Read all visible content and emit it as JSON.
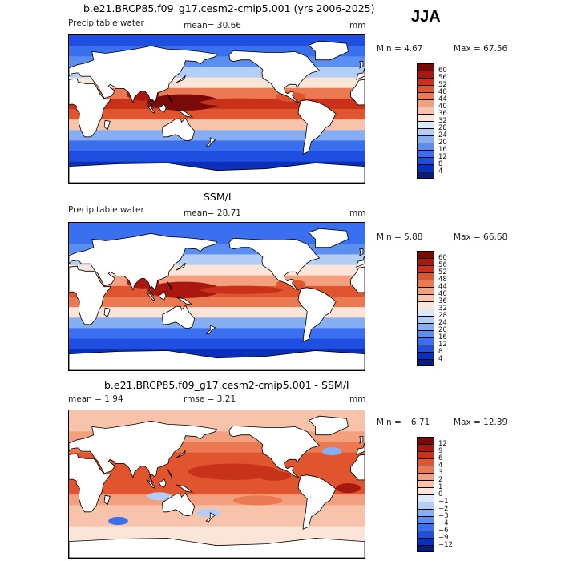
{
  "season": "JJA",
  "panels": [
    {
      "title": "b.e21.BRCP85.f09_g17.cesm2-cmip5.001 (yrs 2006-2025)",
      "variable": "Precipitable water",
      "stat_text": "mean=  30.66",
      "units": "mm",
      "min_text": "Min =    4.67",
      "max_text": "Max =   67.56",
      "colorbar_ticks": [
        "60",
        "56",
        "52",
        "48",
        "44",
        "40",
        "36",
        "32",
        "28",
        "24",
        "20",
        "16",
        "12",
        "8",
        "4"
      ]
    },
    {
      "title": "SSM/I",
      "variable": "Precipitable water",
      "stat_text": "mean=  28.71",
      "units": "mm",
      "min_text": "Min =    5.88",
      "max_text": "Max =   66.68",
      "colorbar_ticks": [
        "60",
        "56",
        "52",
        "48",
        "44",
        "40",
        "36",
        "32",
        "28",
        "24",
        "20",
        "16",
        "12",
        "8",
        "4"
      ]
    },
    {
      "title": "b.e21.BRCP85.f09_g17.cesm2-cmip5.001 - SSM/I",
      "stat_text": "mean =    1.94",
      "rmse_text": "rmse =    3.21",
      "units": "mm",
      "min_text": "Min =  −6.71",
      "max_text": "Max =   12.39",
      "colorbar_ticks": [
        "12",
        "9",
        "6",
        "4",
        "3",
        "2",
        "1",
        "0",
        "−1",
        "−2",
        "−3",
        "−4",
        "−6",
        "−9",
        "−12"
      ]
    }
  ],
  "chart_data": [
    {
      "type": "heatmap",
      "title": "b.e21.BRCP85.f09_g17.cesm2-cmip5.001 (yrs 2006-2025)",
      "variable": "Precipitable water",
      "units": "mm",
      "mean": 30.66,
      "min": 4.67,
      "max": 67.56,
      "contour_levels": [
        4,
        8,
        12,
        16,
        20,
        24,
        28,
        32,
        36,
        40,
        44,
        48,
        52,
        56,
        60
      ],
      "colors": [
        "#081d7a",
        "#0a2fb8",
        "#1f4fe0",
        "#3a70f0",
        "#5a8ef0",
        "#86aef2",
        "#b2cdf6",
        "#dce8fa",
        "#fbe5d8",
        "#f7c4ab",
        "#f2a07e",
        "#eb7a52",
        "#e0552e",
        "#c8321a",
        "#a81810",
        "#7a0a08"
      ],
      "profile": [
        10,
        12,
        16,
        24,
        34,
        45,
        53,
        48,
        36,
        22,
        13,
        9,
        6,
        5
      ]
    },
    {
      "type": "heatmap",
      "title": "SSM/I",
      "variable": "Precipitable water",
      "units": "mm",
      "mean": 28.71,
      "min": 5.88,
      "max": 66.68,
      "contour_levels": [
        4,
        8,
        12,
        16,
        20,
        24,
        28,
        32,
        36,
        40,
        44,
        48,
        52,
        56,
        60
      ],
      "colors": [
        "#081d7a",
        "#0a2fb8",
        "#1f4fe0",
        "#3a70f0",
        "#5a8ef0",
        "#86aef2",
        "#b2cdf6",
        "#dce8fa",
        "#fbe5d8",
        "#f7c4ab",
        "#f2a07e",
        "#eb7a52",
        "#e0552e",
        "#c8321a",
        "#a81810",
        "#7a0a08"
      ],
      "profile": [
        13,
        15,
        18,
        25,
        33,
        42,
        48,
        45,
        35,
        22,
        13,
        9,
        7,
        6
      ]
    },
    {
      "type": "heatmap",
      "title": "b.e21.BRCP85.f09_g17.cesm2-cmip5.001 - SSM/I",
      "units": "mm",
      "mean": 1.94,
      "rmse": 3.21,
      "min": -6.71,
      "max": 12.39,
      "contour_levels": [
        -12,
        -9,
        -6,
        -4,
        -3,
        -2,
        -1,
        0,
        1,
        2,
        3,
        4,
        6,
        9,
        12
      ],
      "colors": [
        "#081d7a",
        "#0a2fb8",
        "#1f4fe0",
        "#3a70f0",
        "#5a8ef0",
        "#86aef2",
        "#b2cdf6",
        "#dce8fa",
        "#fbe5d8",
        "#f7c4ab",
        "#f2a07e",
        "#eb7a52",
        "#e0552e",
        "#c8321a",
        "#a81810",
        "#7a0a08"
      ],
      "profile": [
        1,
        1.5,
        2.5,
        3,
        5,
        4,
        5,
        4,
        2,
        1.5,
        1,
        0.5,
        0,
        0
      ]
    }
  ]
}
